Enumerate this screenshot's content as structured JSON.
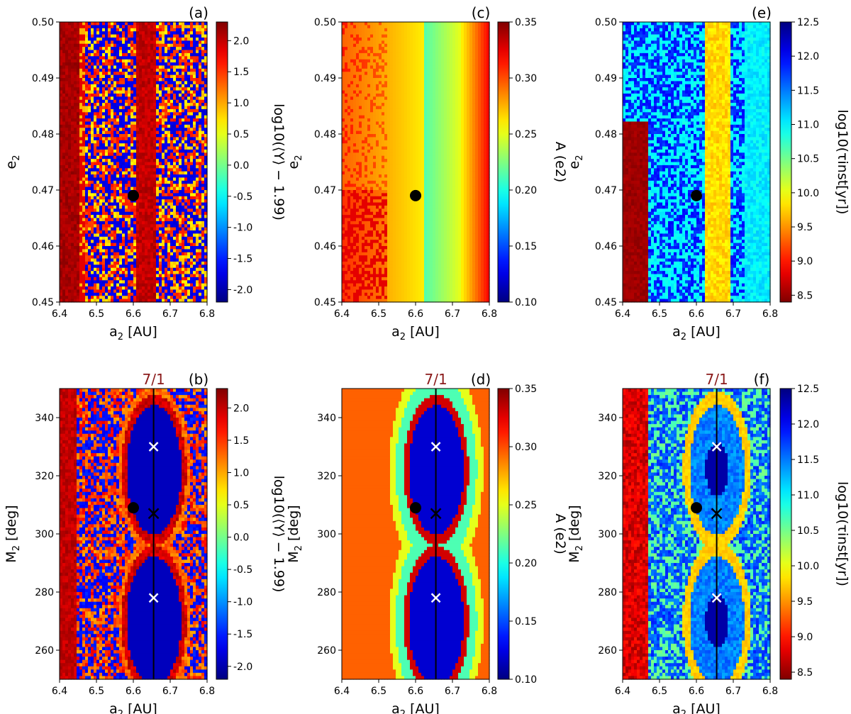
{
  "chart_data": [
    {
      "type": "heatmap",
      "panel": "(a)",
      "xlabel": "a",
      "xlabel_sub": "2",
      "xlabel_unit": " [AU]",
      "ylabel": "e",
      "ylabel_sub": "2",
      "ylabel_unit": "",
      "xlim": [
        6.4,
        6.8
      ],
      "ylim": [
        0.45,
        0.5
      ],
      "xticks": [
        "6.4",
        "6.5",
        "6.6",
        "6.7",
        "6.8"
      ],
      "yticks": [
        "0.45",
        "0.46",
        "0.47",
        "0.48",
        "0.49",
        "0.50"
      ],
      "colorbar": {
        "label": "log10(⟨Y⟩ − 1.99)",
        "cmap": "jet",
        "range": [
          -2.2,
          2.3
        ],
        "ticks": [
          "-2.0",
          "-1.5",
          "-1.0",
          "-0.5",
          "0.0",
          "0.5",
          "1.0",
          "1.5",
          "2.0"
        ]
      },
      "point": {
        "a2": 6.6,
        "e2": 0.469
      }
    },
    {
      "type": "heatmap",
      "panel": "(b)",
      "xlabel": "a",
      "xlabel_sub": "2",
      "xlabel_unit": " [AU]",
      "ylabel": "M",
      "ylabel_sub": "2",
      "ylabel_unit": " [deg]",
      "xlim": [
        6.4,
        6.8
      ],
      "ylim": [
        250,
        350
      ],
      "xticks": [
        "6.4",
        "6.5",
        "6.6",
        "6.7",
        "6.8"
      ],
      "yticks": [
        "260",
        "280",
        "300",
        "320",
        "340"
      ],
      "colorbar": {
        "label": "log10(⟨Y⟩ − 1.99)",
        "cmap": "jet",
        "range": [
          -2.2,
          2.3
        ],
        "ticks": [
          "-2.0",
          "-1.5",
          "-1.0",
          "-0.5",
          "0.0",
          "0.5",
          "1.0",
          "1.5",
          "2.0"
        ]
      },
      "resonance": {
        "label": "7/1",
        "a2": 6.655
      },
      "point": {
        "a2": 6.6,
        "M2": 309
      },
      "saddle": {
        "a2": 6.655,
        "M2": 307
      },
      "centers": [
        {
          "a2": 6.655,
          "M2": 330
        },
        {
          "a2": 6.655,
          "M2": 278
        }
      ]
    },
    {
      "type": "heatmap",
      "panel": "(c)",
      "xlabel": "a",
      "xlabel_sub": "2",
      "xlabel_unit": " [AU]",
      "ylabel": "e",
      "ylabel_sub": "2",
      "ylabel_unit": "",
      "xlim": [
        6.4,
        6.8
      ],
      "ylim": [
        0.45,
        0.5
      ],
      "xticks": [
        "6.4",
        "6.5",
        "6.6",
        "6.7",
        "6.8"
      ],
      "yticks": [
        "0.45",
        "0.46",
        "0.47",
        "0.48",
        "0.49",
        "0.50"
      ],
      "colorbar": {
        "label": "A (e2)",
        "cmap": "jet",
        "range": [
          0.1,
          0.35
        ],
        "ticks": [
          "0.10",
          "0.15",
          "0.20",
          "0.25",
          "0.30",
          "0.35"
        ]
      },
      "point": {
        "a2": 6.6,
        "e2": 0.469
      }
    },
    {
      "type": "heatmap",
      "panel": "(d)",
      "xlabel": "a",
      "xlabel_sub": "2",
      "xlabel_unit": " [AU]",
      "ylabel": "M",
      "ylabel_sub": "2",
      "ylabel_unit": " [deg]",
      "xlim": [
        6.4,
        6.8
      ],
      "ylim": [
        250,
        350
      ],
      "xticks": [
        "6.4",
        "6.5",
        "6.6",
        "6.7",
        "6.8"
      ],
      "yticks": [
        "260",
        "280",
        "300",
        "320",
        "340"
      ],
      "colorbar": {
        "label": "A (e2)",
        "cmap": "jet",
        "range": [
          0.1,
          0.35
        ],
        "ticks": [
          "0.10",
          "0.15",
          "0.20",
          "0.25",
          "0.30",
          "0.35"
        ]
      },
      "resonance": {
        "label": "7/1",
        "a2": 6.655
      },
      "point": {
        "a2": 6.6,
        "M2": 309
      },
      "saddle": {
        "a2": 6.655,
        "M2": 307
      },
      "centers": [
        {
          "a2": 6.655,
          "M2": 330
        },
        {
          "a2": 6.655,
          "M2": 278
        }
      ]
    },
    {
      "type": "heatmap",
      "panel": "(e)",
      "xlabel": "a",
      "xlabel_sub": "2",
      "xlabel_unit": " [AU]",
      "ylabel": "e",
      "ylabel_sub": "2",
      "ylabel_unit": "",
      "xlim": [
        6.4,
        6.8
      ],
      "ylim": [
        0.45,
        0.5
      ],
      "xticks": [
        "6.4",
        "6.5",
        "6.6",
        "6.7",
        "6.8"
      ],
      "yticks": [
        "0.45",
        "0.46",
        "0.47",
        "0.48",
        "0.49",
        "0.50"
      ],
      "colorbar": {
        "label": "log10(τinst[yr])",
        "cmap": "jet_r",
        "range": [
          8.4,
          12.5
        ],
        "ticks": [
          "8.5",
          "9.0",
          "9.5",
          "10.0",
          "10.5",
          "11.0",
          "11.5",
          "12.0",
          "12.5"
        ]
      },
      "point": {
        "a2": 6.6,
        "e2": 0.469
      }
    },
    {
      "type": "heatmap",
      "panel": "(f)",
      "xlabel": "a",
      "xlabel_sub": "2",
      "xlabel_unit": " [AU]",
      "ylabel": "M",
      "ylabel_sub": "2",
      "ylabel_unit": " [deg]",
      "xlim": [
        6.4,
        6.8
      ],
      "ylim": [
        250,
        350
      ],
      "xticks": [
        "6.4",
        "6.5",
        "6.6",
        "6.7",
        "6.8"
      ],
      "yticks": [
        "260",
        "280",
        "300",
        "320",
        "340"
      ],
      "colorbar": {
        "label": "log10(τinst[yr])",
        "cmap": "jet_r",
        "range": [
          8.4,
          12.5
        ],
        "ticks": [
          "8.5",
          "9.0",
          "9.5",
          "10.0",
          "10.5",
          "11.0",
          "11.5",
          "12.0",
          "12.5"
        ]
      },
      "resonance": {
        "label": "7/1",
        "a2": 6.655
      },
      "point": {
        "a2": 6.6,
        "M2": 309
      },
      "saddle": {
        "a2": 6.655,
        "M2": 307
      },
      "centers": [
        {
          "a2": 6.655,
          "M2": 330
        },
        {
          "a2": 6.655,
          "M2": 278
        }
      ]
    }
  ]
}
